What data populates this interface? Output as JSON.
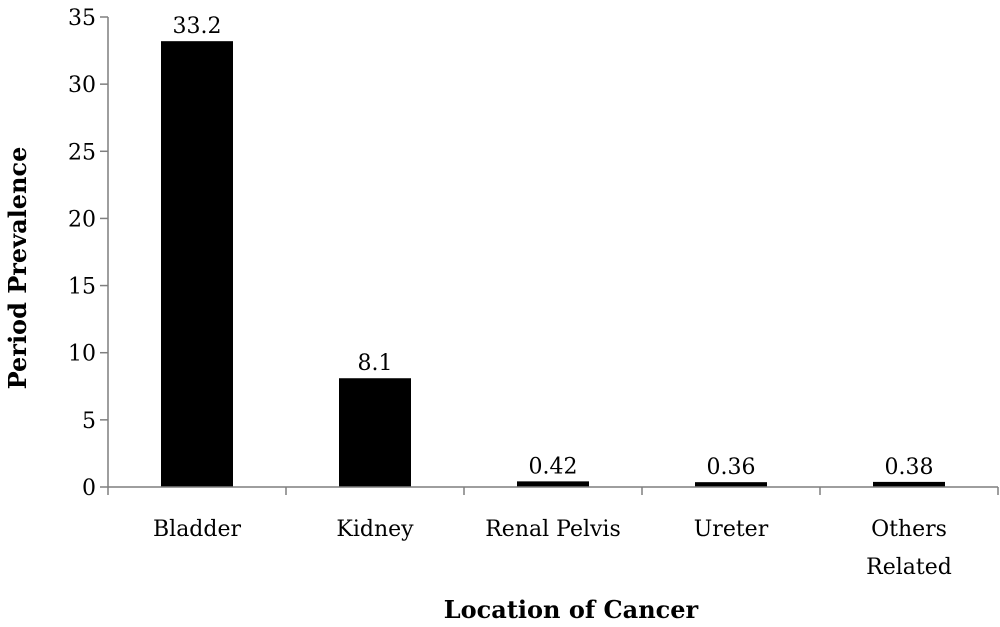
{
  "chart_data": {
    "type": "bar",
    "categories": [
      "Bladder",
      "Kidney",
      "Renal Pelvis",
      "Ureter",
      "Others Related"
    ],
    "category_lines": [
      [
        "Bladder"
      ],
      [
        "Kidney"
      ],
      [
        "Renal Pelvis"
      ],
      [
        "Ureter"
      ],
      [
        "Others",
        "Related"
      ]
    ],
    "values": [
      33.2,
      8.1,
      0.42,
      0.36,
      0.38
    ],
    "data_labels": [
      "33.2",
      "8.1",
      "0.42",
      "0.36",
      "0.38"
    ],
    "xlabel": "Location of Cancer",
    "ylabel": "Period Prevalence",
    "ylim": [
      0,
      35
    ],
    "yticks": [
      0,
      5,
      10,
      15,
      20,
      25,
      30,
      35
    ],
    "grid": false,
    "legend": "none",
    "bar_color": "#000000"
  }
}
